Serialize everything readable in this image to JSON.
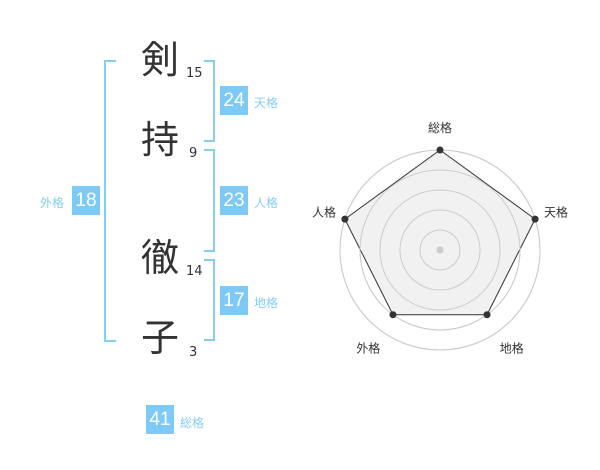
{
  "name": {
    "chars": [
      {
        "char": "剣",
        "strokes": "15"
      },
      {
        "char": "持",
        "strokes": "9"
      },
      {
        "char": "徹",
        "strokes": "14"
      },
      {
        "char": "子",
        "strokes": "3"
      }
    ]
  },
  "kakaku": {
    "tenkaku": {
      "value": "24",
      "label": "天格"
    },
    "jinkaku": {
      "value": "23",
      "label": "人格"
    },
    "chikaku": {
      "value": "17",
      "label": "地格"
    },
    "gaikaku": {
      "value": "18",
      "label": "外格"
    },
    "soukaku": {
      "value": "41",
      "label": "総格"
    }
  },
  "colors": {
    "accent": "#7dcaf6",
    "label": "#86cdf3",
    "radar_fill": "#f0f0f0",
    "radar_line": "#333333",
    "grid": "#cccccc"
  },
  "chart_data": {
    "type": "radar",
    "axes": [
      "総格",
      "天格",
      "地格",
      "外格",
      "人格"
    ],
    "values": [
      5,
      5,
      4,
      4,
      5
    ],
    "range": [
      0,
      5
    ],
    "grid_levels": 5
  }
}
